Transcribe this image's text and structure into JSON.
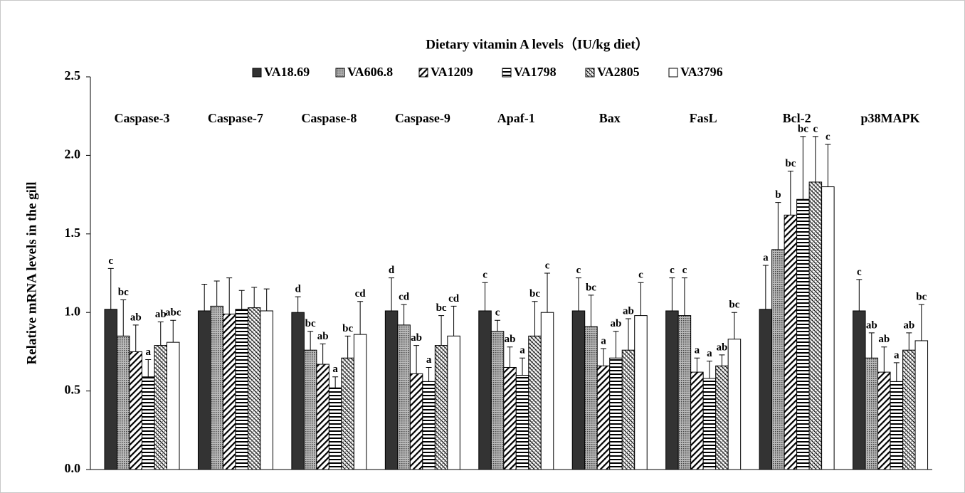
{
  "chart_data": {
    "type": "bar",
    "title": "Dietary vitamin A levels（IU/kg diet）",
    "y_label": "Relative mRNA levels in the gill",
    "categories": [
      "Caspase-3",
      "Caspase-7",
      "Caspase-8",
      "Caspase-9",
      "Apaf-1",
      "Bax",
      "FasL",
      "Bcl-2",
      "p38MAPK"
    ],
    "series": [
      {
        "name": "VA18.69",
        "color": "#333333",
        "pattern": "solid",
        "values": [
          1.02,
          1.01,
          1.0,
          1.01,
          1.01,
          1.01,
          1.01,
          1.02,
          1.01
        ],
        "errors": [
          0.26,
          0.17,
          0.1,
          0.21,
          0.18,
          0.21,
          0.21,
          0.28,
          0.2
        ],
        "letters": [
          "c",
          null,
          "d",
          "d",
          "c",
          "c",
          "c",
          "a",
          "c"
        ]
      },
      {
        "name": "VA606.8",
        "color": "#8c8c8c",
        "pattern": "dots",
        "values": [
          0.85,
          1.04,
          0.76,
          0.92,
          0.88,
          0.91,
          0.98,
          1.4,
          0.71
        ],
        "errors": [
          0.23,
          0.16,
          0.12,
          0.13,
          0.07,
          0.2,
          0.24,
          0.3,
          0.16
        ],
        "letters": [
          "bc",
          null,
          "bc",
          "cd",
          "c",
          "bc",
          "c",
          "b",
          "ab"
        ]
      },
      {
        "name": "VA1209",
        "color": "#000000",
        "pattern": "diagonal",
        "values": [
          0.75,
          0.99,
          0.67,
          0.61,
          0.65,
          0.66,
          0.62,
          1.62,
          0.62
        ],
        "errors": [
          0.17,
          0.23,
          0.13,
          0.18,
          0.13,
          0.11,
          0.09,
          0.28,
          0.16
        ],
        "letters": [
          "ab",
          null,
          "ab",
          "ab",
          "ab",
          "a",
          "a",
          "bc",
          "ab"
        ]
      },
      {
        "name": "VA1798",
        "color": "#000000",
        "pattern": "horizontal",
        "values": [
          0.59,
          1.02,
          0.52,
          0.56,
          0.6,
          0.71,
          0.58,
          1.72,
          0.56
        ],
        "errors": [
          0.11,
          0.12,
          0.07,
          0.09,
          0.11,
          0.17,
          0.11,
          0.4,
          0.12
        ],
        "letters": [
          "a",
          null,
          "a",
          "a",
          "a",
          "ab",
          "a",
          "bc",
          "a"
        ]
      },
      {
        "name": "VA2805",
        "color": "#000000",
        "pattern": "hatch",
        "values": [
          0.79,
          1.03,
          0.71,
          0.79,
          0.85,
          0.76,
          0.66,
          1.83,
          0.76
        ],
        "errors": [
          0.15,
          0.13,
          0.14,
          0.19,
          0.22,
          0.2,
          0.07,
          0.29,
          0.11
        ],
        "letters": [
          "ab",
          null,
          "bc",
          "bc",
          "bc",
          "ab",
          "ab",
          "c",
          "ab"
        ]
      },
      {
        "name": "VA3796",
        "color": "#ffffff",
        "pattern": "none",
        "values": [
          0.81,
          1.01,
          0.86,
          0.85,
          1.0,
          0.98,
          0.83,
          1.8,
          0.82
        ],
        "errors": [
          0.14,
          0.14,
          0.21,
          0.19,
          0.25,
          0.21,
          0.17,
          0.27,
          0.23
        ],
        "letters": [
          "abc",
          null,
          "cd",
          "cd",
          "c",
          "c",
          "bc",
          "c",
          "bc"
        ]
      }
    ],
    "ylim": [
      0,
      2.5
    ],
    "yticks": [
      {
        "value": 0,
        "label": "0.0"
      },
      0.5,
      {
        "value": 1,
        "label": "1.0"
      },
      1.5,
      {
        "value": 2,
        "label": "2.0"
      },
      2.5
    ],
    "grid": false
  }
}
